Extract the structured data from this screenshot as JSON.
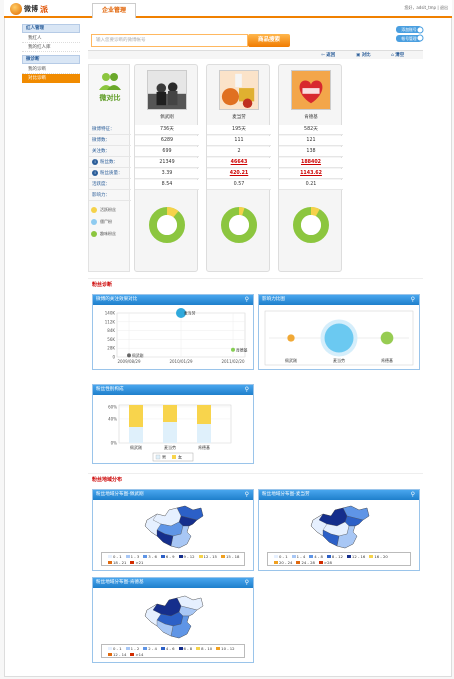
{
  "brand": {
    "name_cn": "微博",
    "name_accent": "派"
  },
  "header": {
    "tab": "企业管理",
    "user": "您好，adsit_tmp",
    "logout": "退出"
  },
  "sidebar": {
    "sections": [
      {
        "title": "红人管理",
        "items": [
          "我红人",
          "我的红人库"
        ]
      },
      {
        "title": "微诊断",
        "items": [
          "我的诊断",
          "对比诊断"
        ]
      }
    ],
    "active": "对比诊断"
  },
  "search": {
    "placeholder": "输入您要诊断的微博帐号",
    "button": "商品搜索"
  },
  "right_buttons": [
    "添加账号",
    "帐号管理"
  ],
  "compare_bar": {
    "back": "返回",
    "compare": "对比",
    "clear": "清空"
  },
  "left_col": {
    "title": "微对比",
    "rows": [
      "微博特征：",
      "微博数：",
      "关注数：",
      "粉丝数：",
      "粉丝质量：",
      "活跃度：",
      "影响力：",
      "粉丝类型："
    ],
    "legend": [
      "活跃粉丝",
      "僵尸粉",
      "趣味粉丝"
    ]
  },
  "cards": [
    {
      "name": "佩武刚",
      "vals": [
        "736天",
        "6289",
        "699",
        "21349",
        "3.39",
        "8.54"
      ]
    },
    {
      "name": "麦当劳",
      "vals": [
        "195天",
        "111",
        "2",
        "46643",
        "420.21",
        "0.57"
      ]
    },
    {
      "name": "肯德基",
      "vals": [
        "582天",
        "121",
        "138",
        "188402",
        "1143.62",
        "0.21"
      ]
    }
  ],
  "donuts": [
    {
      "active": 0.11
    },
    {
      "active": 0.05
    },
    {
      "active": 0.08
    }
  ],
  "sections": {
    "fans": "粉丝诊断",
    "geo": "粉丝地域分布"
  },
  "panels": {
    "bubble": "微博的关注效果对比",
    "scale": "影响力比图",
    "gender": "粉丝性别构成",
    "map1": "粉丝地域分布图-佩武刚",
    "map2": "粉丝地域分布图-麦当劳",
    "map3": "粉丝地域分布图-肯德基"
  },
  "map_legends": {
    "map1": [
      "0 - 1",
      "1 - 3",
      "3 - 6",
      "6 - 9",
      "9 - 12",
      "12 - 15",
      "15 - 18",
      "18 - 21",
      ">21"
    ],
    "map2": [
      "0 - 1",
      "1 - 4",
      "4 - 8",
      "8 - 12",
      "12 - 16",
      "16 - 20",
      "20 - 24",
      "24 - 28",
      ">28"
    ],
    "map3": [
      "0 - 1",
      "1 - 2",
      "2 - 4",
      "4 - 6",
      "6 - 8",
      "8 - 10",
      "10 - 12",
      "12 - 14",
      ">14"
    ]
  },
  "map_colors": [
    "#e6f0ff",
    "#a8c7f5",
    "#5f95e6",
    "#2c60c7",
    "#152e8c",
    "#f5d24a",
    "#f0a020",
    "#e06a10",
    "#d22c00"
  ],
  "chart_data": [
    {
      "type": "scatter",
      "title": "微博的关注效果对比",
      "x": [
        "2009/08/29",
        "2010/01/29",
        "2011/02/20"
      ],
      "ylabel": "",
      "yticks": [
        "0",
        "28K",
        "56K",
        "84K",
        "112K",
        "140K"
      ],
      "series": [
        {
          "name": "佩武刚",
          "x": "2009/08/29",
          "y": 5000
        },
        {
          "name": "麦当劳",
          "x": "2010/01/29",
          "y": 140000
        },
        {
          "name": "肯德基",
          "x": "2011/02/20",
          "y": 23000
        }
      ]
    },
    {
      "type": "scatter",
      "title": "影响力比图",
      "categories": [
        "佩武刚",
        "麦当劳",
        "肯德基"
      ],
      "values": [
        1,
        36,
        5
      ]
    },
    {
      "type": "bar",
      "title": "粉丝性别构成",
      "categories": [
        "佩武刚",
        "麦当劳",
        "肯德基"
      ],
      "yticks": [
        "0%",
        "40%",
        "60%"
      ],
      "series": [
        {
          "name": "男",
          "values": [
            0.58,
            0.45,
            0.5
          ]
        },
        {
          "name": "女",
          "values": [
            0.42,
            0.55,
            0.5
          ]
        }
      ]
    }
  ]
}
